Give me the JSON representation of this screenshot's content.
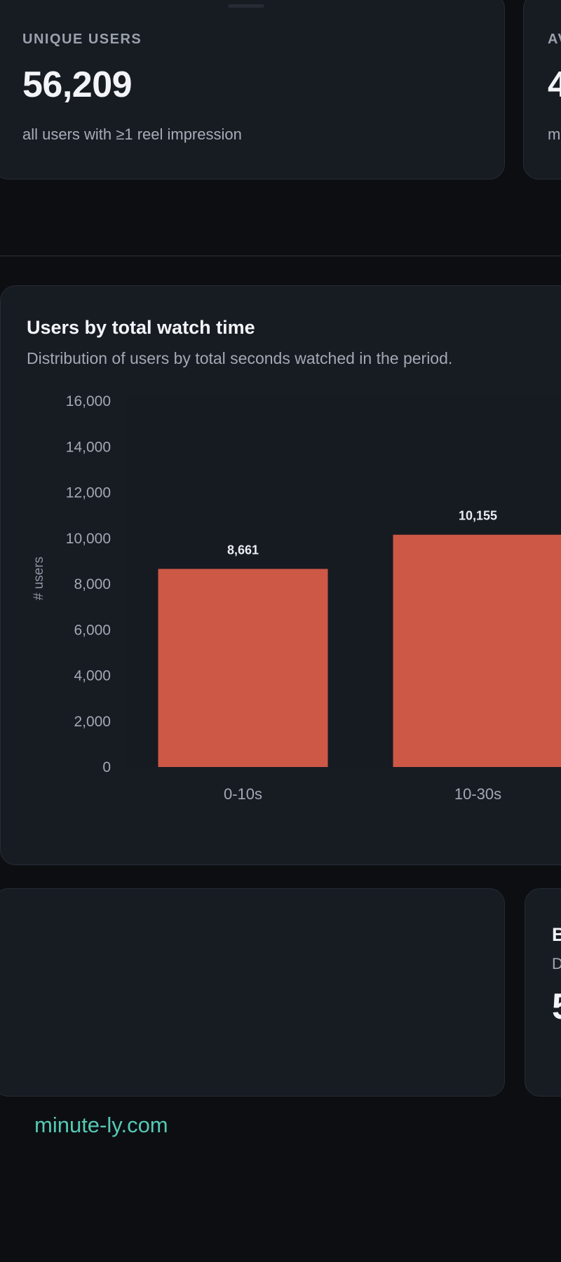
{
  "stats": {
    "unique_users": {
      "label": "UNIQUE USERS",
      "value": "56,209",
      "note": "all users with ≥1 reel impression"
    },
    "second_card": {
      "label": "AV",
      "value": "4",
      "note": "m"
    }
  },
  "chart_section": {
    "title": "Users by total watch time",
    "subtitle": "Distribution of users by total seconds watched in the period."
  },
  "bottom_right_card": {
    "title": "B",
    "subtitle": "D",
    "value": "5"
  },
  "footer": {
    "link": "minute-ly.com"
  },
  "colors": {
    "bar": "#cd5846",
    "accent_link": "#55c9b4",
    "card_bg": "#171b22",
    "page_bg": "#0c0e12"
  },
  "chart_data": {
    "type": "bar",
    "title": "Users by total watch time",
    "subtitle": "Distribution of users by total seconds watched in the period.",
    "xlabel": "",
    "ylabel": "# users",
    "ylim": [
      0,
      16000
    ],
    "yticks": [
      0,
      2000,
      4000,
      6000,
      8000,
      10000,
      12000,
      14000,
      16000
    ],
    "ytick_labels": [
      "0",
      "2,000",
      "4,000",
      "6,000",
      "8,000",
      "10,000",
      "12,000",
      "14,000",
      "16,000"
    ],
    "categories": [
      "0-10s",
      "10-30s"
    ],
    "values": [
      8661,
      10155
    ],
    "value_labels": [
      "8,661",
      "10,155"
    ],
    "grid": false
  }
}
